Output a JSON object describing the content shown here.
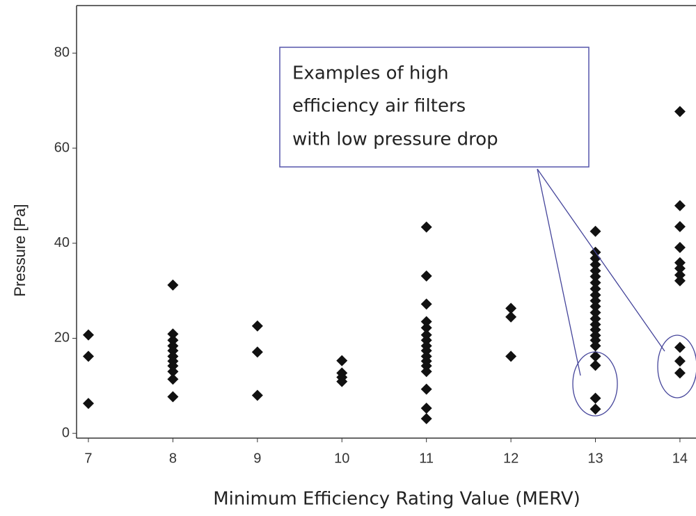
{
  "chart_data": {
    "type": "scatter",
    "x_label": "Minimum Efficiency Rating Value (MERV)",
    "y_label": "Pressure [Pa]",
    "annotation": [
      "Examples of high",
      "efficiency air filters",
      "with low pressure drop"
    ],
    "color": "#111111",
    "x": [
      7,
      7,
      7,
      8,
      8,
      8,
      8,
      8,
      8,
      8,
      8,
      8,
      8,
      8,
      9,
      9,
      9,
      10,
      10,
      10,
      10,
      11,
      11,
      11,
      11,
      11,
      11,
      11,
      11,
      11,
      11,
      11,
      11,
      11,
      11,
      11,
      11,
      12,
      12,
      12,
      13,
      13,
      13,
      13,
      13,
      13,
      13,
      13,
      13,
      13,
      13,
      13,
      13,
      13,
      13,
      13,
      13,
      13,
      13,
      13,
      13,
      13,
      14,
      14,
      14,
      14,
      14,
      14,
      14,
      14,
      14,
      14,
      14
    ],
    "values": [
      20.7,
      16.2,
      6.3,
      31.2,
      20.9,
      19.6,
      18.4,
      17.4,
      16.2,
      15.2,
      14.2,
      13.0,
      11.4,
      7.7,
      22.6,
      17.1,
      8.0,
      15.3,
      12.7,
      11.8,
      10.9,
      43.4,
      33.1,
      27.2,
      23.5,
      22.2,
      20.7,
      19.6,
      18.4,
      17.4,
      16.2,
      15.2,
      14.2,
      13.0,
      9.3,
      5.3,
      3.1,
      26.3,
      24.5,
      16.2,
      42.5,
      38.1,
      36.8,
      35.5,
      34.2,
      33.0,
      31.7,
      30.4,
      29.1,
      27.9,
      26.7,
      25.4,
      24.1,
      22.9,
      21.8,
      20.6,
      19.6,
      18.4,
      16.2,
      14.3,
      7.4,
      5.1,
      67.7,
      47.9,
      43.5,
      39.1,
      35.9,
      34.7,
      33.3,
      32.1,
      18.1,
      15.2,
      12.7
    ],
    "xlim": [
      6.86,
      14.19
    ],
    "xticks": [
      7,
      8,
      9,
      10,
      11,
      12,
      13,
      14
    ],
    "ylim": [
      -1,
      90
    ],
    "yticks": [
      0,
      20,
      40,
      60,
      80
    ]
  }
}
